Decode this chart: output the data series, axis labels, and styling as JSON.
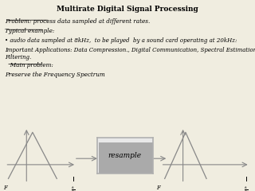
{
  "title": "Multirate Digital Signal Processing",
  "line1": "Problem: process data sampled at different rates.",
  "line2": "Typical example:",
  "line3": "• audio data sampled at 8kHz,  to be played  by a sound card operating at 20kHz:",
  "line4": "Important Applications: Data Compression., Digital Communication, Spectral Estimation,\nFiltering.",
  "line5": "   Main problem:",
  "line6": "Preserve the Frequency Spectrum",
  "bg_color": "#f0ede0",
  "triangle_color": "#888888",
  "box_color": "#b0b0b0",
  "box_face": "#e8e8e8",
  "arrow_color": "#888888"
}
